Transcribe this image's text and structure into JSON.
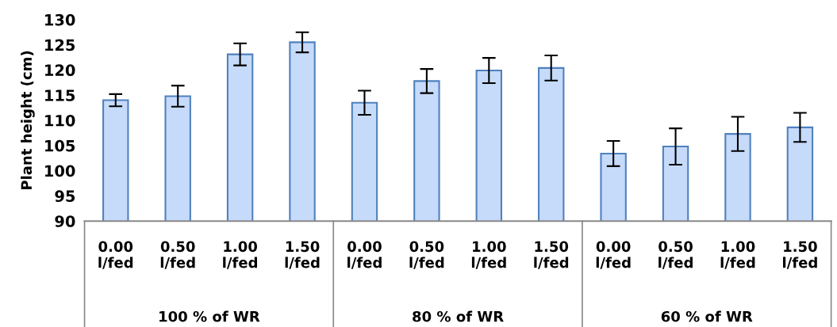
{
  "chart_data": {
    "type": "bar",
    "ylabel": "Plant height (cm)",
    "categories": [
      "0.00\nl/fed",
      "0.50\nl/fed",
      "1.00\nl/fed",
      "1.50\nl/fed",
      "0.00\nl/fed",
      "0.50\nl/fed",
      "1.00\nl/fed",
      "1.50\nl/fed",
      "0.00\nl/fed",
      "0.50\nl/fed",
      "1.00\nl/fed",
      "1.50\nl/fed"
    ],
    "values": [
      114.0,
      114.8,
      123.1,
      125.5,
      113.5,
      117.8,
      119.9,
      120.4,
      103.4,
      104.8,
      107.3,
      108.6
    ],
    "errors": [
      1.2,
      2.1,
      2.2,
      2.0,
      2.4,
      2.4,
      2.5,
      2.5,
      2.5,
      3.6,
      3.4,
      2.9
    ],
    "color": "#c6dafa",
    "ylim": [
      90,
      130
    ],
    "yticks": [
      90,
      95,
      100,
      105,
      110,
      115,
      120,
      125,
      130
    ],
    "annotations": [
      "100 % of WR",
      "80 % of WR",
      "60 % of WR"
    ],
    "grid": false,
    "legend": false
  }
}
